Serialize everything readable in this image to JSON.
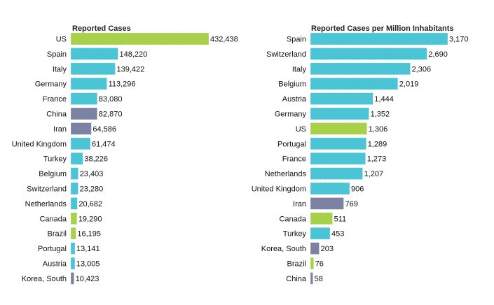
{
  "colors": {
    "default": "#4bc4d6",
    "highlight": "#a8d04a",
    "accent": "#7b82a3"
  },
  "chart_data": [
    {
      "type": "bar",
      "orientation": "horizontal",
      "title": "Reported Cases",
      "categories": [
        "US",
        "Spain",
        "Italy",
        "Germany",
        "France",
        "China",
        "Iran",
        "United Kingdom",
        "Turkey",
        "Belgium",
        "Switzerland",
        "Netherlands",
        "Canada",
        "Brazil",
        "Portugal",
        "Austria",
        "Korea, South"
      ],
      "values": [
        432438,
        148220,
        139422,
        113296,
        83080,
        82870,
        64586,
        61474,
        38226,
        23403,
        23280,
        20682,
        19290,
        16195,
        13141,
        13005,
        10423
      ],
      "value_labels": [
        "432,438",
        "148,220",
        "139,422",
        "113,296",
        "83,080",
        "82,870",
        "64,586",
        "61,474",
        "38,226",
        "23,403",
        "23,280",
        "20,682",
        "19,290",
        "16,195",
        "13,141",
        "13,005",
        "10,423"
      ],
      "bar_colors": [
        "highlight",
        "default",
        "default",
        "default",
        "default",
        "accent",
        "accent",
        "default",
        "default",
        "default",
        "default",
        "default",
        "highlight",
        "highlight",
        "default",
        "default",
        "accent"
      ],
      "xlim": [
        0,
        432438
      ]
    },
    {
      "type": "bar",
      "orientation": "horizontal",
      "title": "Reported Cases per Million Inhabitants",
      "categories": [
        "Spain",
        "Switzerland",
        "Italy",
        "Belgium",
        "Austria",
        "Germany",
        "US",
        "Portugal",
        "France",
        "Netherlands",
        "United Kingdom",
        "Iran",
        "Canada",
        "Turkey",
        "Korea, South",
        "Brazil",
        "China"
      ],
      "values": [
        3170,
        2690,
        2306,
        2019,
        1444,
        1352,
        1306,
        1289,
        1273,
        1207,
        906,
        769,
        511,
        453,
        203,
        76,
        58
      ],
      "value_labels": [
        "3,170",
        "2,690",
        "2,306",
        "2,019",
        "1,444",
        "1,352",
        "1,306",
        "1,289",
        "1,273",
        "1,207",
        "906",
        "769",
        "511",
        "453",
        "203",
        "76",
        "58"
      ],
      "bar_colors": [
        "default",
        "default",
        "default",
        "default",
        "default",
        "default",
        "highlight",
        "default",
        "default",
        "default",
        "default",
        "accent",
        "highlight",
        "default",
        "accent",
        "highlight",
        "accent"
      ],
      "xlim": [
        0,
        3170
      ]
    }
  ]
}
